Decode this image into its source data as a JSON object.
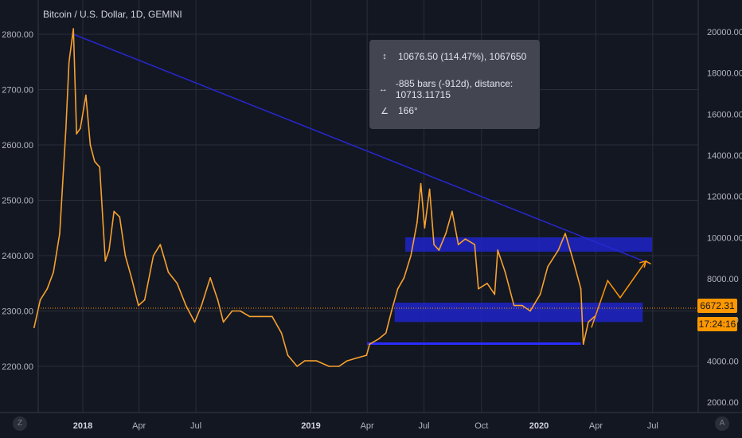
{
  "header": {
    "title": "Bitcoin / U.S. Dollar, 1D, GEMINI"
  },
  "tooltip": {
    "price_range": "10676.50 (114.47%), 1067650",
    "bars_range": "-885 bars (-912d), distance: 10713.11715",
    "angle": "166°",
    "icons": [
      "price-range-icon",
      "bars-range-icon",
      "angle-icon"
    ]
  },
  "price_tags": {
    "last_price": "6672.31",
    "countdown": "17:24:16"
  },
  "corner_buttons": {
    "left": "Z",
    "right": "A"
  },
  "colors": {
    "background": "#131722",
    "price_line": "#f7a12e",
    "trendline": "#2727d0",
    "zone": "#1f24c8",
    "accent": "#ff9800",
    "grid": "#2a2e39"
  },
  "chart_data": {
    "type": "line",
    "title": "Bitcoin / U.S. Dollar, 1D, GEMINI",
    "left_axis": {
      "ticks": [
        "2800.00",
        "2700.00",
        "2600.00",
        "2500.00",
        "2400.00",
        "2300.00",
        "2200.00"
      ],
      "values": [
        2800,
        2700,
        2600,
        2500,
        2400,
        2300,
        2200
      ]
    },
    "right_axis": {
      "ticks": [
        "20000.00",
        "18000.00",
        "16000.00",
        "14000.00",
        "12000.00",
        "10000.00",
        "8000.00",
        "6000.00",
        "4000.00",
        "2000.00"
      ],
      "values": [
        20000,
        18000,
        16000,
        14000,
        12000,
        10000,
        8000,
        6000,
        4000,
        2000
      ]
    },
    "x_ticks": [
      {
        "label": "2018",
        "date": "2018-01-01"
      },
      {
        "label": "Apr",
        "date": "2018-04-01"
      },
      {
        "label": "Jul",
        "date": "2018-07-01"
      },
      {
        "label": "2019",
        "date": "2019-01-01"
      },
      {
        "label": "Apr",
        "date": "2019-04-01"
      },
      {
        "label": "Jul",
        "date": "2019-07-01"
      },
      {
        "label": "Oct",
        "date": "2019-10-01"
      },
      {
        "label": "2020",
        "date": "2020-01-01"
      },
      {
        "label": "Apr",
        "date": "2020-04-01"
      },
      {
        "label": "Jul",
        "date": "2020-07-01"
      }
    ],
    "series": [
      {
        "points": [
          [
            "2017-10-15",
            2270
          ],
          [
            "2017-10-25",
            2320
          ],
          [
            "2017-11-05",
            2340
          ],
          [
            "2017-11-15",
            2370
          ],
          [
            "2017-11-25",
            2440
          ],
          [
            "2017-12-05",
            2630
          ],
          [
            "2017-12-10",
            2750
          ],
          [
            "2017-12-17",
            2810
          ],
          [
            "2017-12-22",
            2620
          ],
          [
            "2017-12-28",
            2630
          ],
          [
            "2018-01-06",
            2690
          ],
          [
            "2018-01-13",
            2600
          ],
          [
            "2018-01-20",
            2570
          ],
          [
            "2018-01-28",
            2560
          ],
          [
            "2018-02-06",
            2390
          ],
          [
            "2018-02-12",
            2410
          ],
          [
            "2018-02-20",
            2480
          ],
          [
            "2018-03-01",
            2470
          ],
          [
            "2018-03-10",
            2400
          ],
          [
            "2018-03-20",
            2360
          ],
          [
            "2018-03-31",
            2310
          ],
          [
            "2018-04-10",
            2320
          ],
          [
            "2018-04-24",
            2400
          ],
          [
            "2018-05-05",
            2420
          ],
          [
            "2018-05-18",
            2370
          ],
          [
            "2018-06-01",
            2350
          ],
          [
            "2018-06-15",
            2310
          ],
          [
            "2018-06-29",
            2280
          ],
          [
            "2018-07-10",
            2310
          ],
          [
            "2018-07-24",
            2360
          ],
          [
            "2018-08-05",
            2320
          ],
          [
            "2018-08-14",
            2280
          ],
          [
            "2018-08-28",
            2300
          ],
          [
            "2018-09-10",
            2300
          ],
          [
            "2018-09-25",
            2290
          ],
          [
            "2018-10-10",
            2290
          ],
          [
            "2018-10-31",
            2290
          ],
          [
            "2018-11-15",
            2260
          ],
          [
            "2018-11-25",
            2220
          ],
          [
            "2018-12-10",
            2200
          ],
          [
            "2018-12-22",
            2210
          ],
          [
            "2019-01-10",
            2210
          ],
          [
            "2019-01-30",
            2200
          ],
          [
            "2019-02-15",
            2200
          ],
          [
            "2019-02-28",
            2210
          ],
          [
            "2019-03-15",
            2215
          ],
          [
            "2019-03-31",
            2220
          ],
          [
            "2019-04-05",
            2240
          ],
          [
            "2019-04-20",
            2250
          ],
          [
            "2019-05-01",
            2260
          ],
          [
            "2019-05-10",
            2300
          ],
          [
            "2019-05-20",
            2340
          ],
          [
            "2019-05-30",
            2360
          ],
          [
            "2019-06-10",
            2400
          ],
          [
            "2019-06-20",
            2460
          ],
          [
            "2019-06-26",
            2530
          ],
          [
            "2019-07-02",
            2450
          ],
          [
            "2019-07-10",
            2520
          ],
          [
            "2019-07-17",
            2420
          ],
          [
            "2019-07-25",
            2410
          ],
          [
            "2019-08-05",
            2440
          ],
          [
            "2019-08-15",
            2480
          ],
          [
            "2019-08-25",
            2420
          ],
          [
            "2019-09-05",
            2430
          ],
          [
            "2019-09-20",
            2420
          ],
          [
            "2019-09-26",
            2340
          ],
          [
            "2019-10-10",
            2350
          ],
          [
            "2019-10-22",
            2330
          ],
          [
            "2019-10-27",
            2410
          ],
          [
            "2019-11-08",
            2370
          ],
          [
            "2019-11-22",
            2310
          ],
          [
            "2019-12-05",
            2310
          ],
          [
            "2019-12-18",
            2300
          ],
          [
            "2020-01-03",
            2330
          ],
          [
            "2020-01-15",
            2380
          ],
          [
            "2020-02-01",
            2410
          ],
          [
            "2020-02-12",
            2440
          ],
          [
            "2020-02-25",
            2390
          ],
          [
            "2020-03-08",
            2340
          ],
          [
            "2020-03-12",
            2240
          ],
          [
            "2020-03-20",
            2280
          ],
          [
            "2020-03-30",
            2290
          ]
        ]
      }
    ],
    "trendline": {
      "from": [
        "2017-12-17",
        2800
      ],
      "to": [
        "2020-06-28",
        2385
      ]
    },
    "zones": [
      {
        "from": "2019-06-01",
        "to": "2020-06-30",
        "low": 2407,
        "high": 2433
      },
      {
        "from": "2019-05-15",
        "to": "2020-06-15",
        "low": 2280,
        "high": 2315
      }
    ],
    "support_line": {
      "from": "2019-04-01",
      "to": "2020-03-08",
      "value": 2241
    },
    "projection": [
      [
        "2020-03-25",
        2270
      ],
      [
        "2020-04-20",
        2355
      ],
      [
        "2020-05-10",
        2324
      ],
      [
        "2020-06-20",
        2390
      ],
      [
        "2020-06-28",
        2385
      ]
    ],
    "current_price_line": 2305
  }
}
